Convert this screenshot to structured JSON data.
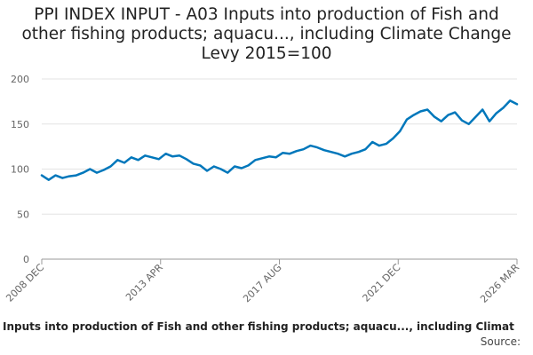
{
  "chart_data": {
    "type": "line",
    "title_lines": [
      "PPI INDEX INPUT - A03 Inputs into production of Fish and",
      "other fishing products; aquacu..., including Climate Change",
      "Levy 2015=100"
    ],
    "xlabel": "",
    "ylabel": "",
    "ylim": [
      0,
      200
    ],
    "y_ticks": [
      0,
      50,
      100,
      150,
      200
    ],
    "x_ticks": [
      "2008 DEC",
      "2013 APR",
      "2017 AUG",
      "2021 DEC",
      "2026 MAR"
    ],
    "x_range": [
      "2008-12",
      "2026-03"
    ],
    "grid": true,
    "color": "#0077bb",
    "series": [
      {
        "values": [
          [
            "2008-12",
            93
          ],
          [
            "2009-03",
            88
          ],
          [
            "2009-06",
            93
          ],
          [
            "2009-09",
            90
          ],
          [
            "2009-12",
            92
          ],
          [
            "2010-03",
            93
          ],
          [
            "2010-06",
            96
          ],
          [
            "2010-09",
            100
          ],
          [
            "2010-12",
            96
          ],
          [
            "2011-03",
            99
          ],
          [
            "2011-06",
            103
          ],
          [
            "2011-09",
            110
          ],
          [
            "2011-12",
            107
          ],
          [
            "2012-03",
            113
          ],
          [
            "2012-06",
            110
          ],
          [
            "2012-09",
            115
          ],
          [
            "2012-12",
            113
          ],
          [
            "2013-03",
            111
          ],
          [
            "2013-06",
            117
          ],
          [
            "2013-09",
            114
          ],
          [
            "2013-12",
            115
          ],
          [
            "2014-03",
            111
          ],
          [
            "2014-06",
            106
          ],
          [
            "2014-09",
            104
          ],
          [
            "2014-12",
            98
          ],
          [
            "2015-03",
            103
          ],
          [
            "2015-06",
            100
          ],
          [
            "2015-09",
            96
          ],
          [
            "2015-12",
            103
          ],
          [
            "2016-03",
            101
          ],
          [
            "2016-06",
            104
          ],
          [
            "2016-09",
            110
          ],
          [
            "2016-12",
            112
          ],
          [
            "2017-03",
            114
          ],
          [
            "2017-06",
            113
          ],
          [
            "2017-09",
            118
          ],
          [
            "2017-12",
            117
          ],
          [
            "2018-03",
            120
          ],
          [
            "2018-06",
            122
          ],
          [
            "2018-09",
            126
          ],
          [
            "2018-12",
            124
          ],
          [
            "2019-03",
            121
          ],
          [
            "2019-06",
            119
          ],
          [
            "2019-09",
            117
          ],
          [
            "2019-12",
            114
          ],
          [
            "2020-03",
            117
          ],
          [
            "2020-06",
            119
          ],
          [
            "2020-09",
            122
          ],
          [
            "2020-12",
            130
          ],
          [
            "2021-03",
            126
          ],
          [
            "2021-06",
            128
          ],
          [
            "2021-09",
            134
          ],
          [
            "2021-12",
            142
          ],
          [
            "2022-03",
            155
          ],
          [
            "2022-06",
            160
          ],
          [
            "2022-09",
            164
          ],
          [
            "2022-12",
            166
          ],
          [
            "2023-03",
            158
          ],
          [
            "2023-06",
            153
          ],
          [
            "2023-09",
            160
          ],
          [
            "2023-12",
            163
          ],
          [
            "2024-03",
            154
          ],
          [
            "2024-06",
            150
          ],
          [
            "2024-09",
            158
          ],
          [
            "2024-12",
            166
          ],
          [
            "2025-03",
            153
          ],
          [
            "2025-06",
            162
          ],
          [
            "2025-09",
            168
          ],
          [
            "2025-12",
            176
          ],
          [
            "2026-03",
            172
          ]
        ]
      }
    ]
  },
  "footer": {
    "caption": "Inputs into production of Fish and other fishing products; aquacu..., including Climat",
    "source_label": "Source:"
  }
}
